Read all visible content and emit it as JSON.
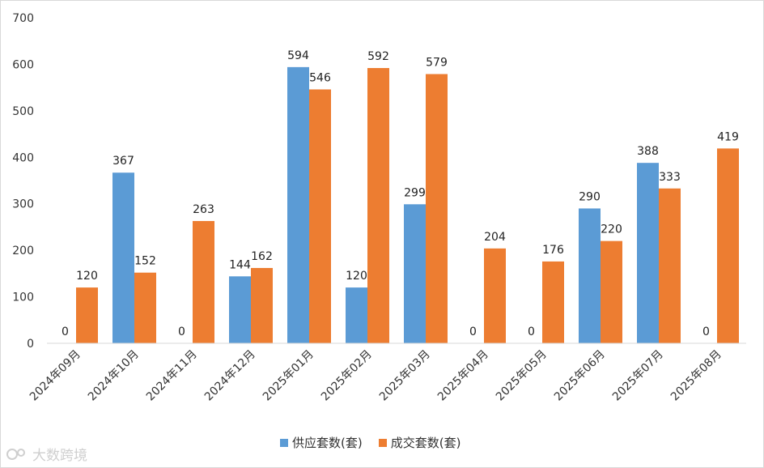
{
  "chart_data": {
    "type": "bar",
    "categories": [
      "2024年09月",
      "2024年10月",
      "2024年11月",
      "2024年12月",
      "2025年01月",
      "2025年02月",
      "2025年03月",
      "2025年04月",
      "2025年05月",
      "2025年06月",
      "2025年07月",
      "2025年08月"
    ],
    "series": [
      {
        "name": "供应套数(套)",
        "color": "#5b9bd5",
        "values": [
          0,
          367,
          0,
          144,
          594,
          120,
          299,
          0,
          0,
          290,
          388,
          0
        ]
      },
      {
        "name": "成交套数(套)",
        "color": "#ed7d31",
        "values": [
          120,
          152,
          263,
          162,
          546,
          592,
          579,
          204,
          176,
          220,
          333,
          419
        ]
      }
    ],
    "ylim": [
      0,
      700
    ],
    "yticks": [
      0,
      100,
      200,
      300,
      400,
      500,
      600,
      700
    ],
    "grid": false,
    "legend_position": "bottom"
  },
  "watermark": {
    "text": "大数跨境"
  }
}
